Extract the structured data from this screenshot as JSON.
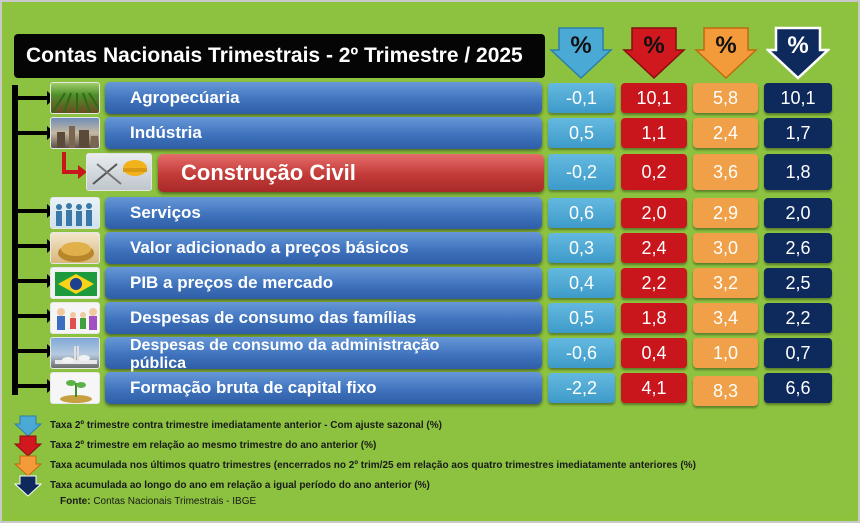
{
  "title": "Contas Nacionais Trimestrais - 2º Trimestre / 2025",
  "header_symbol": "%",
  "colors": {
    "col1": "#4ba9d6",
    "col2": "#c8161c",
    "col3": "#f0a048",
    "col4": "#0e2a5c",
    "background": "#8cc23f"
  },
  "rows": [
    {
      "label": "Agropecúaria",
      "icon": "farm-field-icon",
      "values": [
        "-0,1",
        "10,1",
        "5,8",
        "10,1"
      ]
    },
    {
      "label": "Indústria",
      "icon": "factory-icon",
      "values": [
        "0,5",
        "1,1",
        "2,4",
        "1,7"
      ]
    },
    {
      "label": "Construção Civil",
      "icon": "construction-icon",
      "values": [
        "-0,2",
        "0,2",
        "3,6",
        "1,8"
      ]
    },
    {
      "label": "Serviços",
      "icon": "people-icon",
      "values": [
        "0,6",
        "2,0",
        "2,9",
        "2,0"
      ]
    },
    {
      "label": "Valor adicionado a preços básicos",
      "icon": "coins-icon",
      "values": [
        "0,3",
        "2,4",
        "3,0",
        "2,6"
      ]
    },
    {
      "label": "PIB a preços de mercado",
      "icon": "brazil-flag-icon",
      "values": [
        "0,4",
        "2,2",
        "3,2",
        "2,5"
      ]
    },
    {
      "label": "Despesas de consumo das famílias",
      "icon": "family-icon",
      "values": [
        "0,5",
        "1,8",
        "3,4",
        "2,2"
      ]
    },
    {
      "label": "Despesas de consumo da administração pública",
      "icon": "government-icon",
      "values": [
        "-0,6",
        "0,4",
        "1,0",
        "0,7"
      ]
    },
    {
      "label": "Formação bruta de capital fixo",
      "icon": "plant-coins-icon",
      "values": [
        "-2,2",
        "4,1",
        "8,3",
        "6,6"
      ]
    }
  ],
  "legend": [
    "Taxa  2º trimestre contra trimestre imediatamente anterior - Com ajuste sazonal (%)",
    "Taxa 2º trimestre em relação ao mesmo trimestre do ano anterior (%)",
    "Taxa acumulada nos últimos quatro trimestres (encerrados no 2º trim/25 em relação aos quatro trimestres imediatamente anteriores  (%)",
    "Taxa acumulada ao longo do ano em relação a igual período do ano anterior (%)"
  ],
  "source": {
    "label": "Fonte:",
    "text": "Contas Nacionais Trimestrais - IBGE"
  }
}
